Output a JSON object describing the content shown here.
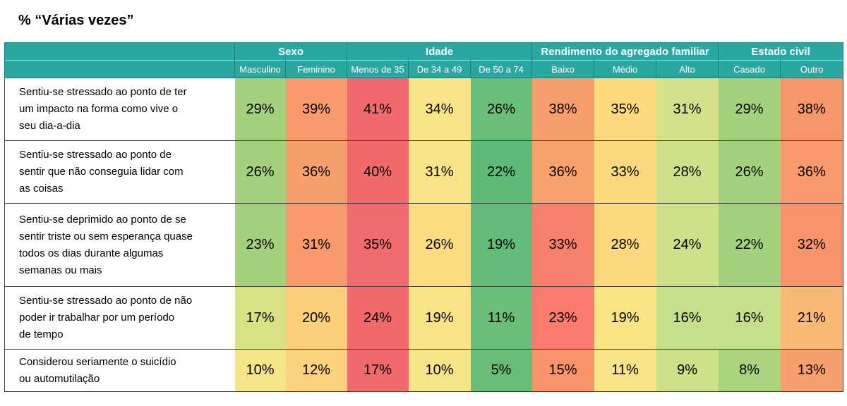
{
  "title": "% “Várias vezes”",
  "chart_data": {
    "type": "table",
    "title": "% “Várias vezes”",
    "groups": [
      {
        "label": "Sexo",
        "span": 2
      },
      {
        "label": "Idade",
        "span": 3
      },
      {
        "label": "Rendimento do agregado familiar",
        "span": 3
      },
      {
        "label": "Estado civil",
        "span": 2
      }
    ],
    "columns": [
      "Masculino",
      "Feminino",
      "Menos de 35",
      "De 34 a 49",
      "De 50 a 74",
      "Baixo",
      "Médio",
      "Alto",
      "Casado",
      "Outro"
    ],
    "rows": [
      {
        "label_lines": [
          "Sentiu-se stressado ao ponto de ter",
          "um impacto na forma como vive o",
          "seu dia-a-dia"
        ],
        "values": [
          29,
          39,
          41,
          34,
          26,
          38,
          35,
          31,
          29,
          38
        ],
        "labels": [
          "29%",
          "39%",
          "41%",
          "34%",
          "26%",
          "38%",
          "35%",
          "31%",
          "29%",
          "38%"
        ],
        "colors": [
          "#a5d17e",
          "#f89a6c",
          "#f0696c",
          "#f6e487",
          "#6bbe79",
          "#f8a06d",
          "#fcd97e",
          "#d4e08a",
          "#a5d17e",
          "#f8966b"
        ]
      },
      {
        "label_lines": [
          "Sentiu-se stressado ao ponto de",
          "sentir que não conseguia lidar com",
          "as coisas"
        ],
        "values": [
          26,
          36,
          40,
          31,
          22,
          36,
          33,
          28,
          26,
          36
        ],
        "labels": [
          "26%",
          "36%",
          "40%",
          "31%",
          "22%",
          "36%",
          "33%",
          "28%",
          "26%",
          "36%"
        ],
        "colors": [
          "#a5d17e",
          "#f8a06d",
          "#f06a6c",
          "#f6e487",
          "#5dba78",
          "#f8a26e",
          "#fcd97e",
          "#cfe08a",
          "#a5d17e",
          "#f89a6c"
        ]
      },
      {
        "label_lines": [
          "Sentiu-se deprimido ao ponto de se",
          "sentir triste ou sem esperança quase",
          "todos os dias durante algumas",
          "semanas ou mais"
        ],
        "values": [
          23,
          31,
          35,
          26,
          19,
          33,
          28,
          24,
          22,
          32
        ],
        "labels": [
          "23%",
          "31%",
          "35%",
          "26%",
          "19%",
          "33%",
          "28%",
          "24%",
          "22%",
          "32%"
        ],
        "colors": [
          "#a5d17e",
          "#f89a6c",
          "#f06b6d",
          "#fbdc80",
          "#63bb78",
          "#f8816e",
          "#fcd87f",
          "#cee08a",
          "#a5d17e",
          "#f8946b"
        ]
      },
      {
        "label_lines": [
          "Sentiu-se stressado ao ponto de não",
          "poder ir trabalhar por um período",
          "de tempo"
        ],
        "values": [
          17,
          20,
          24,
          19,
          11,
          23,
          19,
          16,
          16,
          21
        ],
        "labels": [
          "17%",
          "20%",
          "24%",
          "19%",
          "11%",
          "23%",
          "19%",
          "16%",
          "16%",
          "21%"
        ],
        "colors": [
          "#d9e185",
          "#fcd07b",
          "#f06a6c",
          "#f6e487",
          "#6bbe79",
          "#f87b6e",
          "#f8e484",
          "#c6df8a",
          "#c6df8a",
          "#fbb978"
        ]
      },
      {
        "label_lines": [
          "Considerou seriamente o suicídio",
          "ou automutilação"
        ],
        "values": [
          10,
          12,
          17,
          10,
          5,
          15,
          11,
          9,
          8,
          13
        ],
        "labels": [
          "10%",
          "12%",
          "17%",
          "10%",
          "5%",
          "15%",
          "11%",
          "9%",
          "8%",
          "13%"
        ],
        "colors": [
          "#f4e688",
          "#fdd27e",
          "#f0696c",
          "#f4e688",
          "#67bc78",
          "#f8936c",
          "#f6e487",
          "#cfe08a",
          "#a9d37e",
          "#f8a06d"
        ]
      }
    ]
  }
}
